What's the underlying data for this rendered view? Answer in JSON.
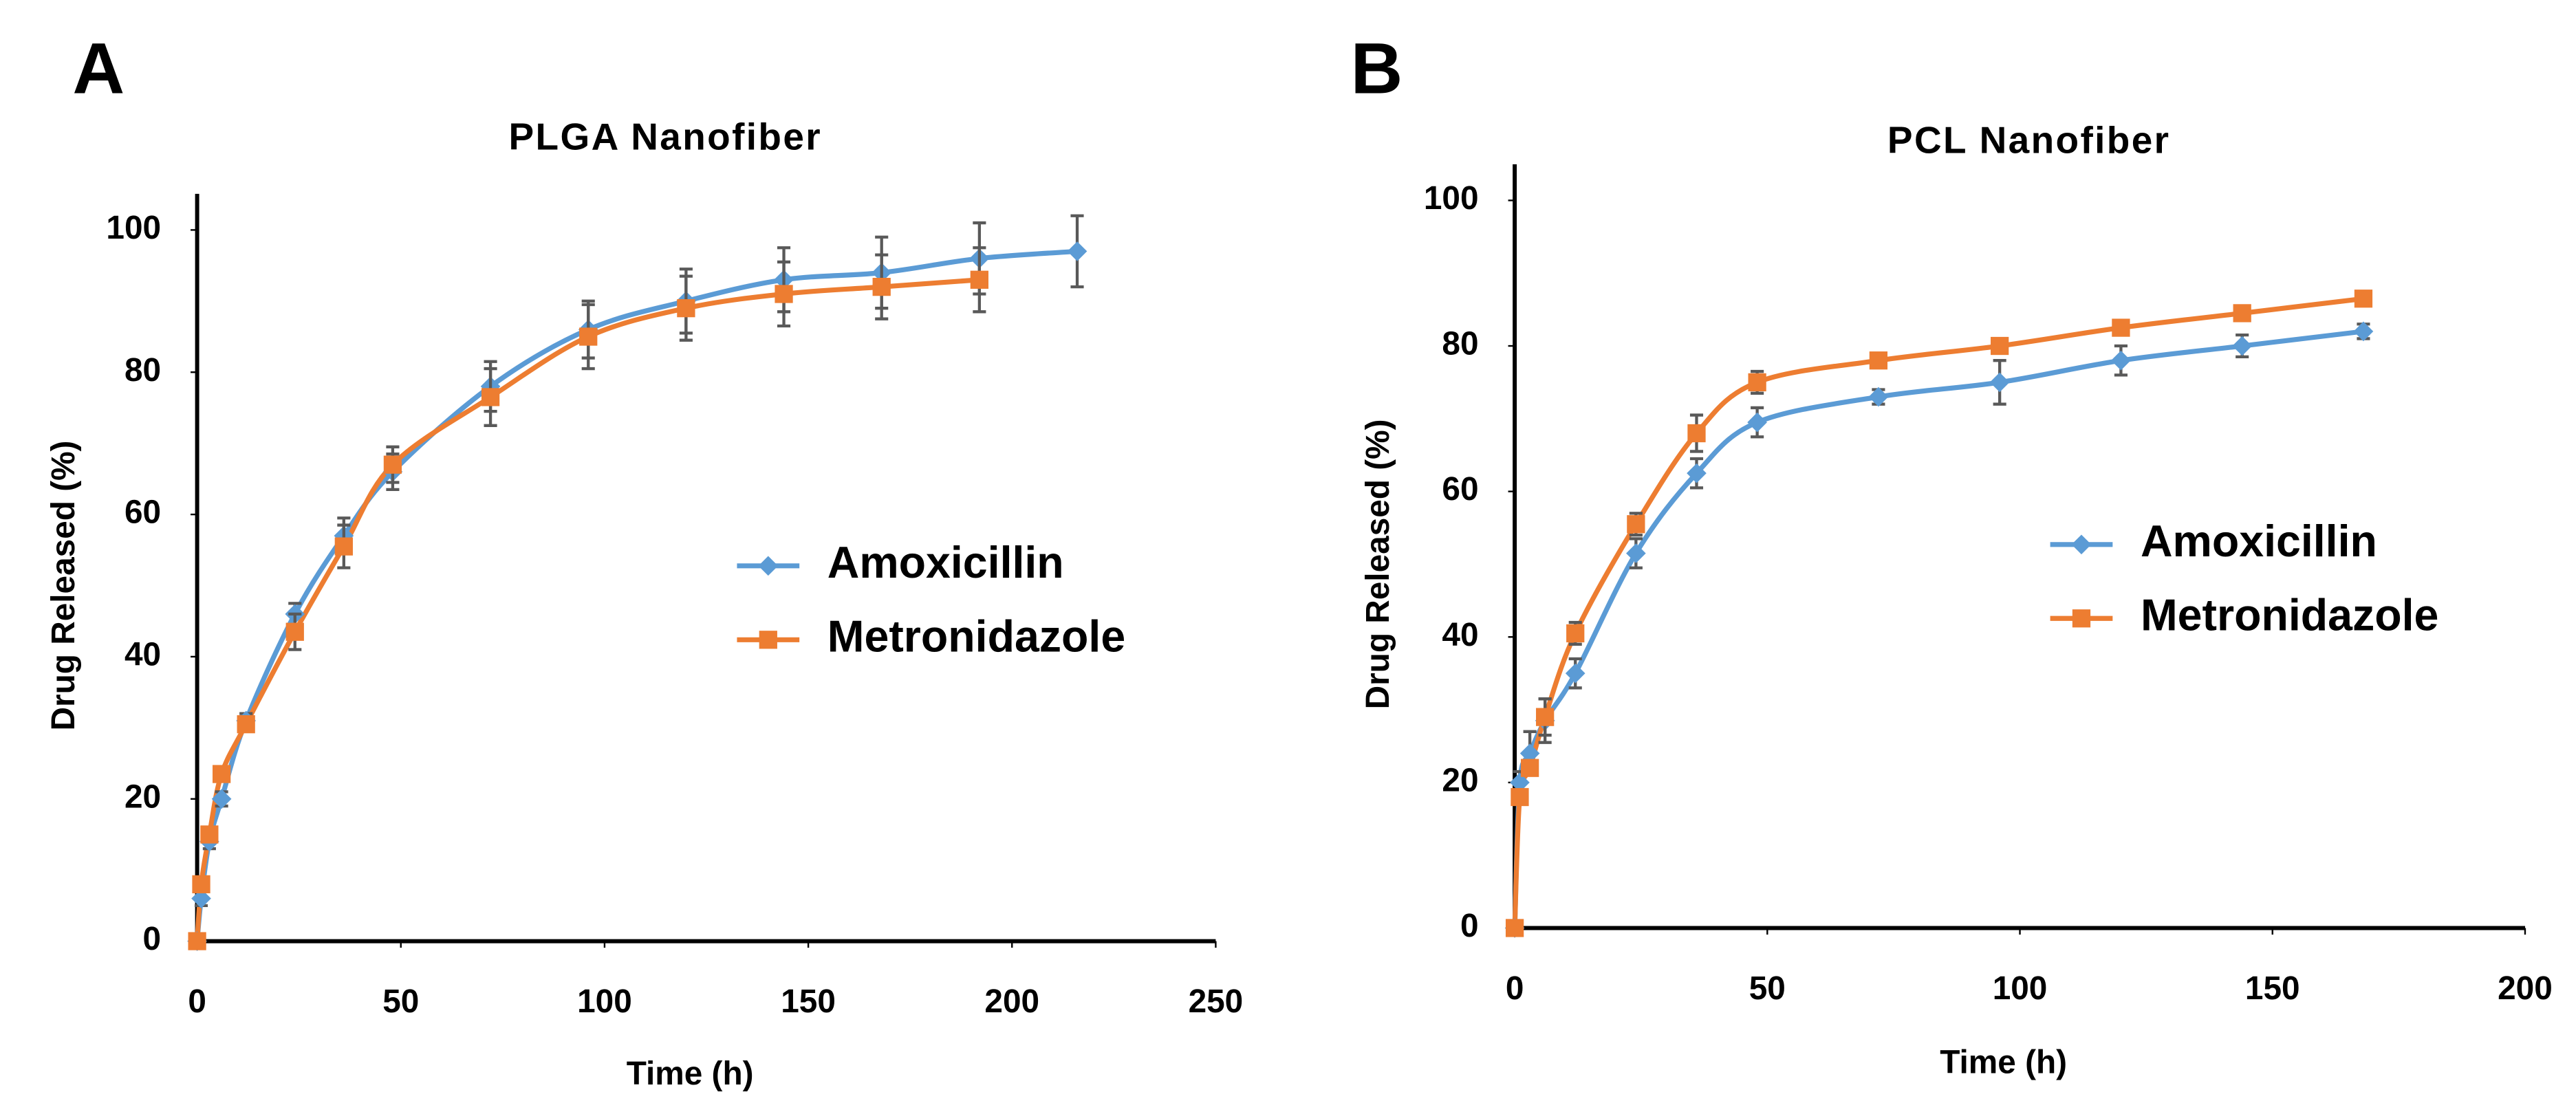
{
  "chart_data": [
    {
      "type": "line",
      "panel": "A",
      "title": "PLGA Nanofiber",
      "xlabel": "Time (h)",
      "ylabel": "Drug Released (%)",
      "xlim": [
        0,
        250
      ],
      "xticks": [
        0,
        50,
        100,
        150,
        200,
        250
      ],
      "ylim": [
        0,
        100
      ],
      "yticks": [
        0,
        20,
        40,
        60,
        80,
        100
      ],
      "legend": "right",
      "series": [
        {
          "name": "Amoxicillin",
          "color": "#5b9bd5",
          "marker": "diamond",
          "x": [
            0,
            1,
            3,
            6,
            12,
            24,
            36,
            48,
            72,
            96,
            120,
            144,
            168,
            192,
            216
          ],
          "values": [
            0,
            6,
            14,
            20,
            31,
            46,
            57,
            66,
            78,
            86,
            90,
            93,
            94,
            96,
            97
          ],
          "errors": [
            0,
            1,
            1,
            1,
            1,
            1.5,
            2.5,
            2.5,
            3.5,
            4,
            4.5,
            4.5,
            5,
            5,
            5
          ]
        },
        {
          "name": "Metronidazole",
          "color": "#ed7d31",
          "marker": "square",
          "x": [
            0,
            1,
            3,
            6,
            12,
            24,
            36,
            48,
            72,
            96,
            120,
            144,
            168,
            192
          ],
          "values": [
            0,
            8,
            15,
            23.5,
            30.5,
            43.5,
            55.5,
            67,
            76.5,
            85,
            89,
            91,
            92,
            93
          ],
          "errors": [
            0,
            1,
            1,
            1,
            1,
            2.5,
            3,
            2.5,
            4,
            4.5,
            4.5,
            4.5,
            4.5,
            4.5
          ]
        }
      ]
    },
    {
      "type": "line",
      "panel": "B",
      "title": "PCL Nanofiber",
      "xlabel": "Time (h)",
      "ylabel": "Drug Released (%)",
      "xlim": [
        0,
        200
      ],
      "xticks": [
        0,
        50,
        100,
        150,
        200
      ],
      "ylim": [
        0,
        100
      ],
      "yticks": [
        0,
        20,
        40,
        60,
        80,
        100
      ],
      "legend": "right",
      "series": [
        {
          "name": "Amoxicillin",
          "color": "#5b9bd5",
          "marker": "diamond",
          "x": [
            0,
            1,
            3,
            6,
            12,
            24,
            36,
            48,
            72,
            96,
            120,
            144,
            168
          ],
          "values": [
            0,
            20,
            24,
            28.5,
            35,
            51.5,
            62.5,
            69.5,
            73,
            75,
            78,
            80,
            82
          ],
          "errors": [
            0,
            1.5,
            3,
            3,
            2,
            2,
            2,
            2,
            1,
            3,
            2,
            1.5,
            1
          ]
        },
        {
          "name": "Metronidazole",
          "color": "#ed7d31",
          "marker": "square",
          "x": [
            0,
            1,
            3,
            6,
            12,
            24,
            36,
            48,
            72,
            96,
            120,
            144,
            168
          ],
          "values": [
            0,
            18,
            22,
            29,
            40.5,
            55.5,
            68,
            75,
            78,
            80,
            82.5,
            84.5,
            86.5
          ],
          "errors": [
            0,
            1,
            1,
            2.5,
            1.5,
            1.5,
            2.5,
            1.5,
            1,
            1,
            1,
            1,
            1
          ]
        }
      ]
    }
  ]
}
